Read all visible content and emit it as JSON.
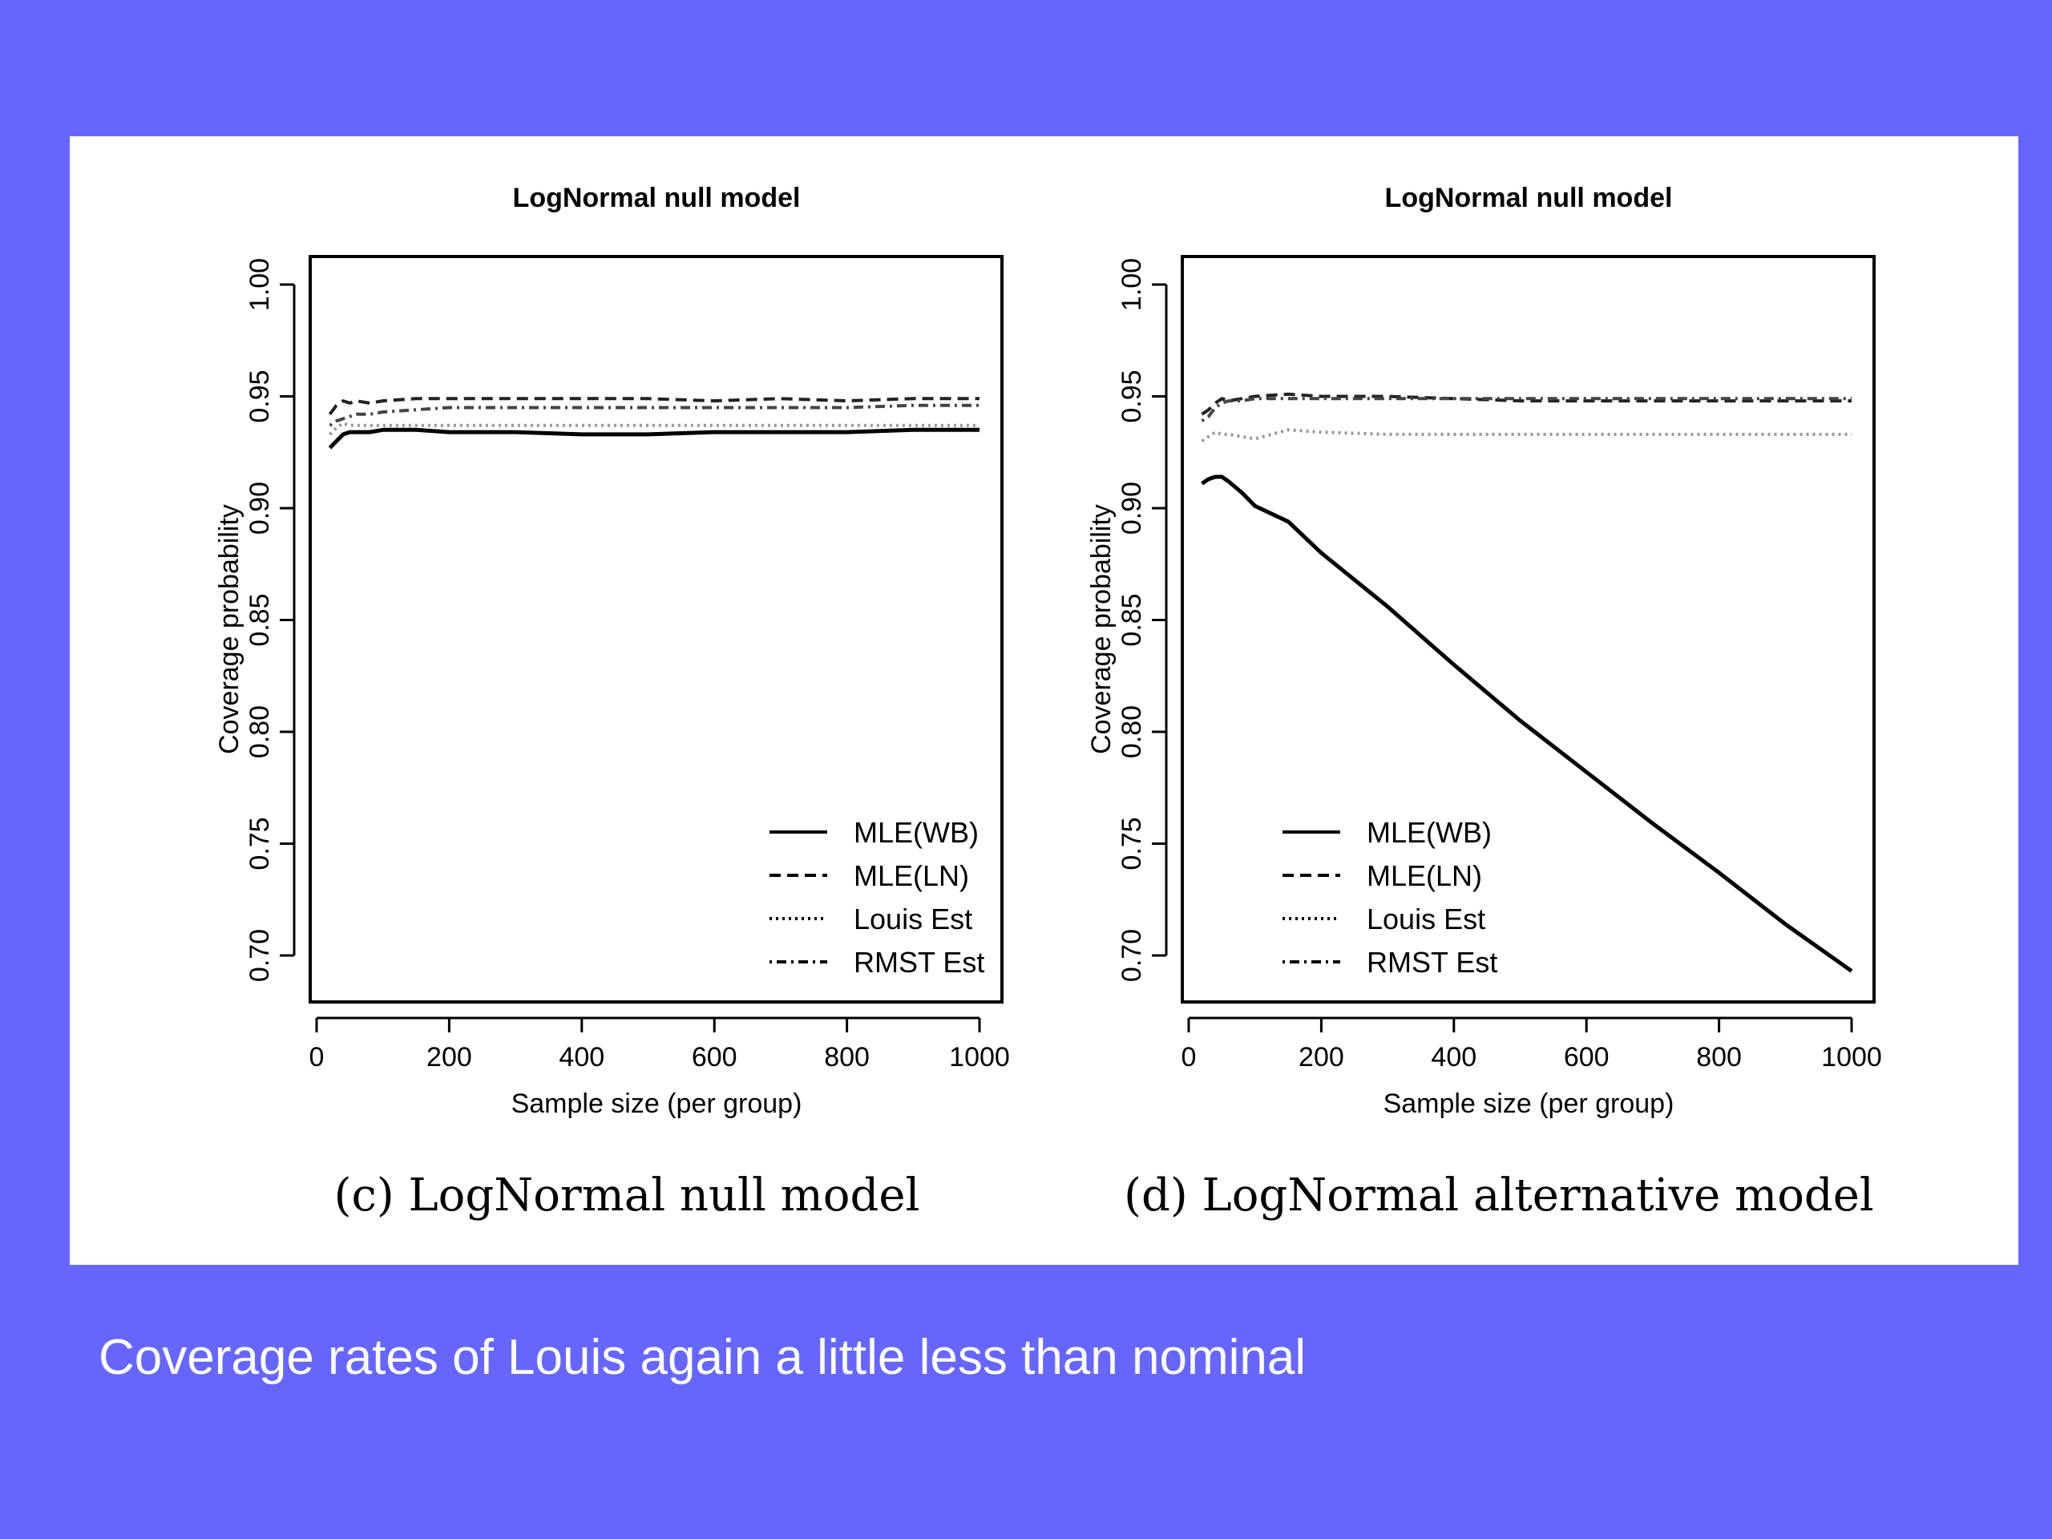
{
  "slide": {
    "background": "#6666ff",
    "caption": "Coverage rates of Louis again a little less than nominal"
  },
  "chart_data": [
    {
      "type": "line",
      "title": "LogNormal null model",
      "subcaption": "(c) LogNormal null model",
      "xlabel": "Sample size (per group)",
      "ylabel": "Coverage probability",
      "xlim": [
        0,
        1000
      ],
      "ylim": [
        0.7,
        1.0
      ],
      "xticks": [
        "0",
        "200",
        "400",
        "600",
        "800",
        "1000"
      ],
      "yticks": [
        "0.70",
        "0.75",
        "0.80",
        "0.85",
        "0.90",
        "0.95",
        "1.00"
      ],
      "legend_position": "bottom-right",
      "grid": false,
      "x": [
        20,
        30,
        40,
        50,
        60,
        80,
        100,
        150,
        200,
        300,
        400,
        500,
        600,
        700,
        800,
        900,
        1000
      ],
      "series": [
        {
          "name": "MLE(WB)",
          "style": "solid",
          "color": "#000000",
          "values": [
            0.927,
            0.93,
            0.933,
            0.934,
            0.934,
            0.934,
            0.935,
            0.935,
            0.934,
            0.934,
            0.933,
            0.933,
            0.934,
            0.934,
            0.934,
            0.935,
            0.935
          ]
        },
        {
          "name": "MLE(LN)",
          "style": "dashed",
          "color": "#222222",
          "values": [
            0.942,
            0.946,
            0.948,
            0.947,
            0.948,
            0.947,
            0.948,
            0.949,
            0.949,
            0.949,
            0.949,
            0.949,
            0.948,
            0.949,
            0.948,
            0.949,
            0.949
          ]
        },
        {
          "name": "Louis Est",
          "style": "dotted",
          "color": "#999999",
          "values": [
            0.933,
            0.936,
            0.938,
            0.937,
            0.937,
            0.937,
            0.937,
            0.937,
            0.937,
            0.937,
            0.937,
            0.937,
            0.937,
            0.937,
            0.937,
            0.937,
            0.937
          ]
        },
        {
          "name": "RMST Est",
          "style": "dotdash",
          "color": "#444444",
          "values": [
            0.937,
            0.939,
            0.94,
            0.941,
            0.942,
            0.942,
            0.943,
            0.944,
            0.945,
            0.945,
            0.945,
            0.945,
            0.945,
            0.945,
            0.945,
            0.946,
            0.946
          ]
        }
      ]
    },
    {
      "type": "line",
      "title": "LogNormal null model",
      "subcaption": "(d) LogNormal alternative model",
      "xlabel": "Sample size (per group)",
      "ylabel": "Coverage probability",
      "xlim": [
        0,
        1000
      ],
      "ylim": [
        0.7,
        1.0
      ],
      "xticks": [
        "0",
        "200",
        "400",
        "600",
        "800",
        "1000"
      ],
      "yticks": [
        "0.70",
        "0.75",
        "0.80",
        "0.85",
        "0.90",
        "0.95",
        "1.00"
      ],
      "legend_position": "bottom-left",
      "grid": false,
      "x": [
        20,
        30,
        40,
        50,
        60,
        80,
        100,
        150,
        200,
        300,
        400,
        500,
        600,
        700,
        800,
        900,
        1000
      ],
      "series": [
        {
          "name": "MLE(WB)",
          "style": "solid",
          "color": "#000000",
          "values": [
            0.911,
            0.913,
            0.914,
            0.914,
            0.912,
            0.907,
            0.901,
            0.894,
            0.88,
            0.856,
            0.83,
            0.805,
            0.782,
            0.759,
            0.737,
            0.714,
            0.693
          ]
        },
        {
          "name": "MLE(LN)",
          "style": "dashed",
          "color": "#222222",
          "values": [
            0.942,
            0.944,
            0.947,
            0.949,
            0.948,
            0.949,
            0.95,
            0.951,
            0.95,
            0.95,
            0.949,
            0.948,
            0.948,
            0.948,
            0.948,
            0.948,
            0.948
          ]
        },
        {
          "name": "Louis Est",
          "style": "dotted",
          "color": "#999999",
          "values": [
            0.93,
            0.932,
            0.934,
            0.933,
            0.933,
            0.932,
            0.931,
            0.935,
            0.934,
            0.933,
            0.933,
            0.933,
            0.933,
            0.933,
            0.933,
            0.933,
            0.933
          ]
        },
        {
          "name": "RMST Est",
          "style": "dotdash",
          "color": "#444444",
          "values": [
            0.939,
            0.941,
            0.945,
            0.947,
            0.948,
            0.948,
            0.949,
            0.949,
            0.949,
            0.949,
            0.949,
            0.949,
            0.949,
            0.949,
            0.949,
            0.949,
            0.949
          ]
        }
      ]
    }
  ]
}
